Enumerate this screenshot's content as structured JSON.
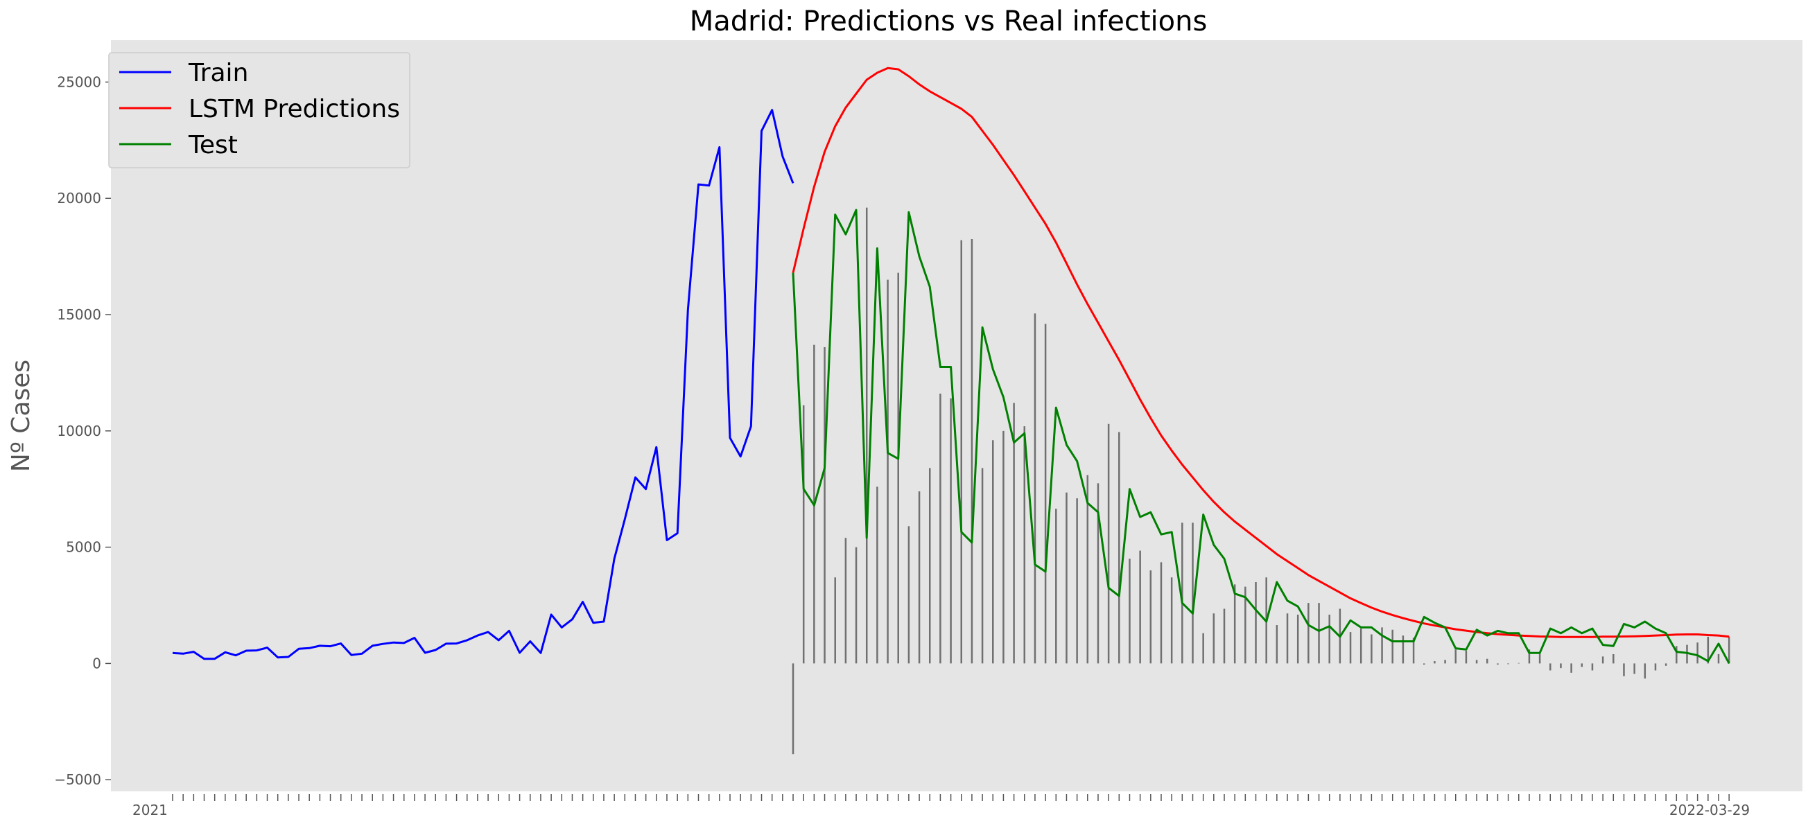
{
  "chart_data": {
    "type": "line",
    "title": "Madrid: Predictions vs Real infections",
    "xlabel": "",
    "ylabel": "Nº Cases",
    "ylim": [
      -5500,
      26800
    ],
    "yticks": [
      -5000,
      0,
      5000,
      10000,
      15000,
      20000,
      25000
    ],
    "grid": false,
    "legend_position": "upper-left",
    "background_color": "#e5e5e5",
    "x_tick_labels_visible": [
      "2021",
      "2022-03-29"
    ],
    "series": [
      {
        "name": "Train",
        "color": "#0000ff",
        "start_index": 0,
        "values": [
          450,
          420,
          500,
          200,
          200,
          480,
          350,
          550,
          560,
          680,
          260,
          280,
          630,
          660,
          760,
          740,
          860,
          360,
          420,
          760,
          840,
          900,
          880,
          1100,
          460,
          580,
          850,
          860,
          1000,
          1200,
          1350,
          1000,
          1400,
          460,
          950,
          450,
          2100,
          1550,
          1900,
          2650,
          1750,
          1800,
          4500,
          6200,
          8000,
          7500,
          9300,
          5300,
          5600,
          15200,
          20600,
          20550,
          22200,
          9700,
          8900,
          10200,
          22900,
          23800,
          21800,
          20650
        ]
      },
      {
        "name": "LSTM Predictions",
        "color": "#ff0000",
        "start_index": 59,
        "values": [
          16800,
          18700,
          20500,
          22000,
          23100,
          23900,
          24500,
          25100,
          25400,
          25600,
          25550,
          25250,
          24900,
          24600,
          24350,
          24100,
          23850,
          23500,
          22900,
          22300,
          21650,
          21000,
          20300,
          19600,
          18900,
          18100,
          17200,
          16300,
          15450,
          14650,
          13850,
          13050,
          12200,
          11350,
          10550,
          9800,
          9150,
          8550,
          8000,
          7450,
          6950,
          6500,
          6100,
          5750,
          5400,
          5050,
          4700,
          4400,
          4100,
          3800,
          3550,
          3300,
          3050,
          2800,
          2600,
          2400,
          2230,
          2080,
          1950,
          1830,
          1720,
          1630,
          1550,
          1470,
          1410,
          1350,
          1300,
          1260,
          1230,
          1200,
          1180,
          1160,
          1150,
          1140,
          1140,
          1140,
          1140,
          1150,
          1150,
          1160,
          1170,
          1180,
          1200,
          1220,
          1240,
          1250,
          1250,
          1220,
          1200,
          1150
        ]
      },
      {
        "name": "Test",
        "color": "#008000",
        "start_index": 59,
        "values": [
          16800,
          7500,
          6800,
          8400,
          19300,
          18450,
          19500,
          5400,
          17850,
          9050,
          8800,
          19400,
          17500,
          16200,
          12750,
          12750,
          5650,
          5200,
          14450,
          12650,
          11450,
          9500,
          9900,
          4250,
          3950,
          11000,
          9400,
          8700,
          6900,
          6500,
          3250,
          2900,
          7500,
          6300,
          6500,
          5550,
          5650,
          2600,
          2150,
          6400,
          5100,
          4500,
          3000,
          2850,
          2300,
          1800,
          3500,
          2700,
          2450,
          1650,
          1400,
          1600,
          1150,
          1850,
          1550,
          1550,
          1200,
          950,
          950,
          950,
          2000,
          1750,
          1550,
          650,
          600,
          1450,
          1200,
          1400,
          1300,
          1300,
          450,
          450,
          1500,
          1300,
          1550,
          1300,
          1500,
          800,
          750,
          1700,
          1550,
          1800,
          1500,
          1300,
          500,
          450,
          350,
          100,
          850,
          0
        ]
      },
      {
        "name": "",
        "type": "vlines",
        "color": "#707070",
        "start_index": 59,
        "values": [
          -3900,
          11100,
          13700,
          13600,
          3700,
          5400,
          5000,
          19600,
          7600,
          16500,
          16800,
          5900,
          7400,
          8400,
          11600,
          11400,
          18200,
          18250,
          8400,
          9600,
          10000,
          11200,
          10200,
          15050,
          14600,
          6650,
          7350,
          7100,
          8100,
          7750,
          10300,
          9950,
          4500,
          4850,
          4000,
          4350,
          3700,
          6050,
          6050,
          1300,
          2150,
          2350,
          3400,
          3300,
          3500,
          3700,
          1650,
          2150,
          2100,
          2600,
          2600,
          2100,
          2350,
          1350,
          1500,
          1250,
          1550,
          1450,
          1200,
          1100,
          -50,
          100,
          150,
          600,
          550,
          150,
          200,
          -50,
          -30,
          20,
          600,
          500,
          -300,
          -200,
          -400,
          -150,
          -300,
          300,
          400,
          -550,
          -450,
          -650,
          -300,
          -100,
          750,
          800,
          900,
          1150,
          400,
          1150
        ]
      }
    ]
  }
}
